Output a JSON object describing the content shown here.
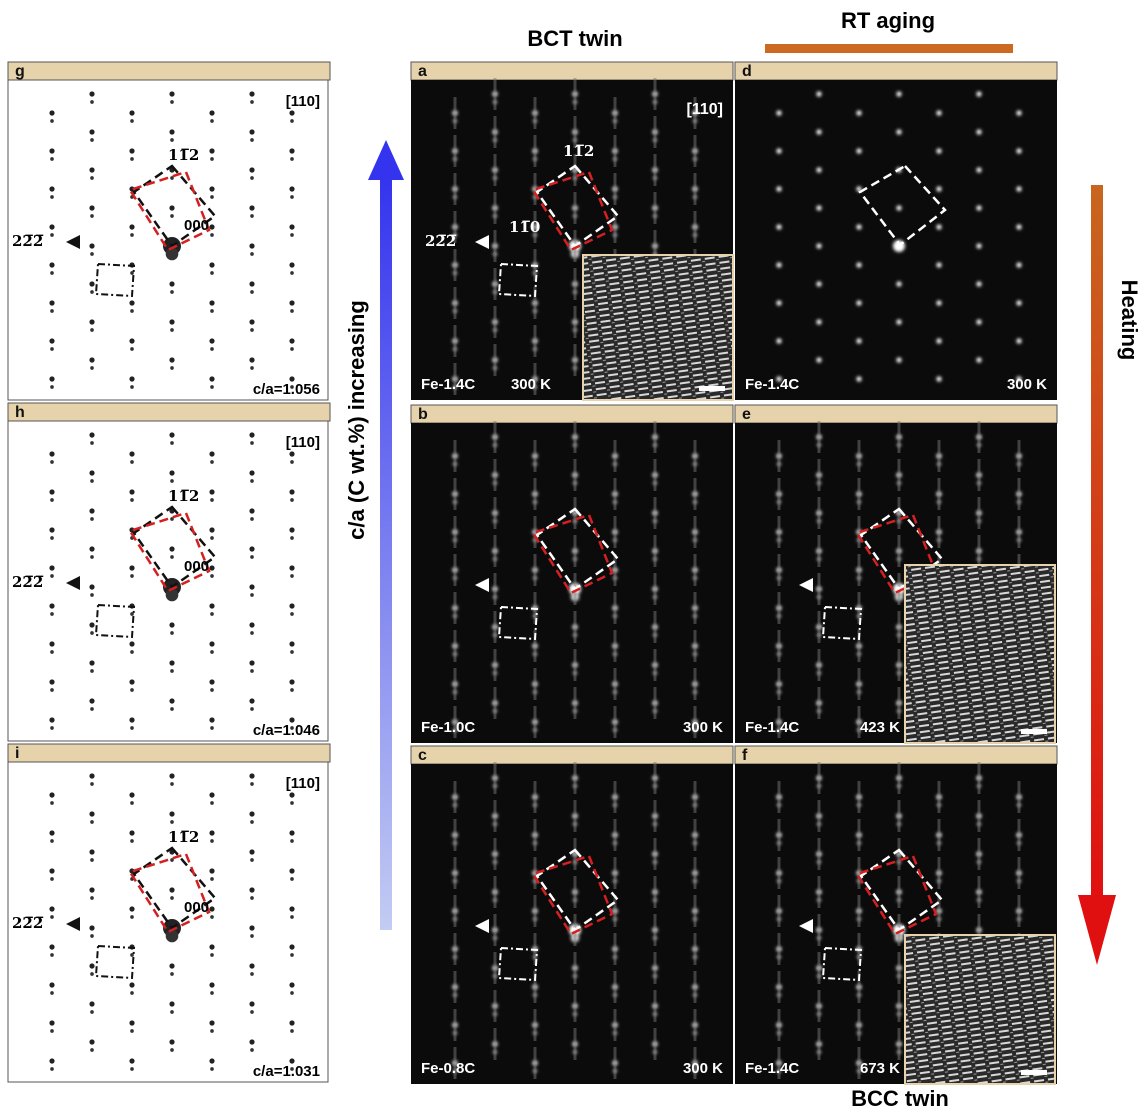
{
  "column_titles": {
    "bct": "BCT twin",
    "rt": "RT aging",
    "bcc": "BCC twin"
  },
  "axis_labels": {
    "left": "c/a (C wt.%) increasing",
    "right": "Heating"
  },
  "left_panels": [
    {
      "label": "g",
      "zone_axis": "[110]",
      "spot_112": "11̅2",
      "spot_222": "22̅2̅",
      "spot_000": "000",
      "ratio": "c/a=1.056"
    },
    {
      "label": "h",
      "zone_axis": "[110]",
      "spot_112": "11̅2",
      "spot_222": "22̅2̅",
      "spot_000": "000",
      "ratio": "c/a=1.046"
    },
    {
      "label": "i",
      "zone_axis": "[110]",
      "spot_112": "11̅2",
      "spot_222": "22̅2̅",
      "spot_000": "000",
      "ratio": "c/a=1.031"
    }
  ],
  "panels": [
    {
      "label": "a",
      "zone_axis": "[110]",
      "spot_112": "11̅2",
      "spot_110": "11̅0",
      "spot_222": "22̅2̅",
      "composition": "Fe-1.4C",
      "temperature": "300 K"
    },
    {
      "label": "b",
      "composition": "Fe-1.0C",
      "temperature": "300 K"
    },
    {
      "label": "c",
      "composition": "Fe-0.8C",
      "temperature": "300 K"
    },
    {
      "label": "d",
      "composition": "Fe-1.4C",
      "temperature": "300 K"
    },
    {
      "label": "e",
      "composition": "Fe-1.4C",
      "temperature": "423 K"
    },
    {
      "label": "f",
      "composition": "Fe-1.4C",
      "temperature": "673 K"
    }
  ]
}
